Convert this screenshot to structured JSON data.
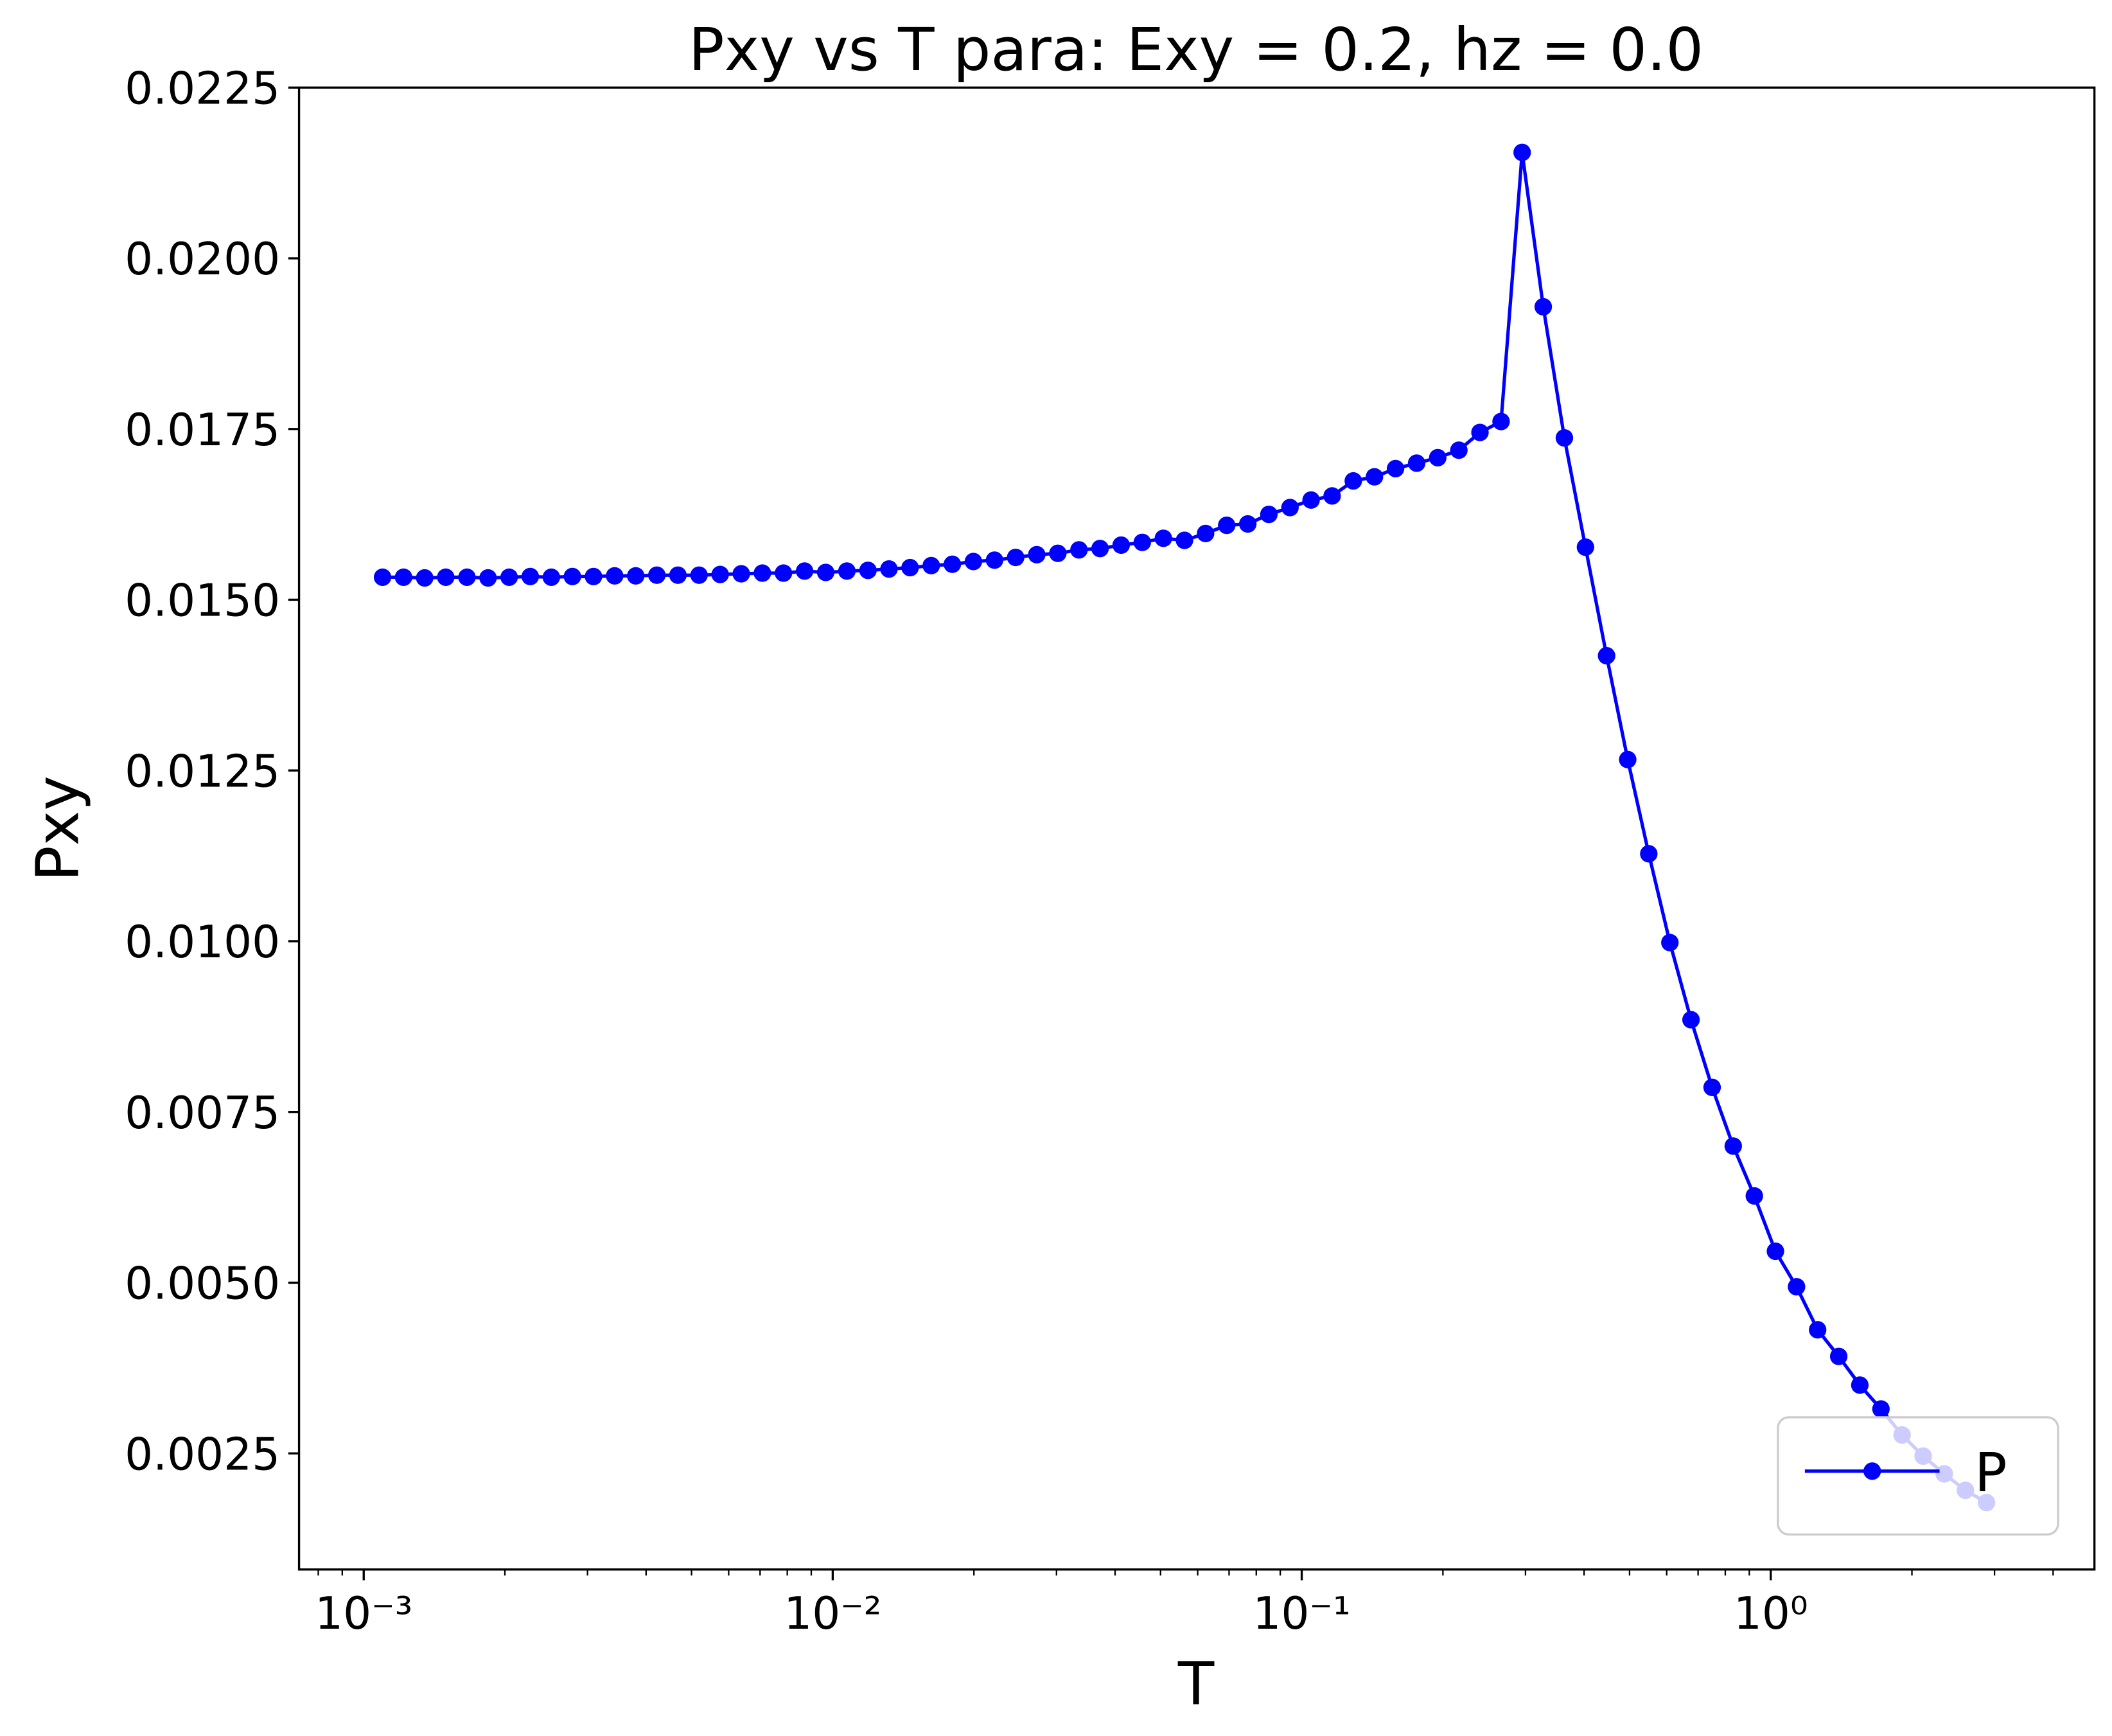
{
  "chart_data": {
    "type": "line",
    "title": "Pxy vs T para: Exy = 0.2, hz = 0.0",
    "x_label": "T",
    "y_label": "Pxy",
    "x_log": true,
    "legend": "lower right",
    "grid": false,
    "x": [
      0.001097,
      0.001216,
      0.001349,
      0.001496,
      0.00166,
      0.001841,
      0.002042,
      0.002265,
      0.002512,
      0.002786,
      0.00309,
      0.003428,
      0.003802,
      0.004217,
      0.004677,
      0.005188,
      0.005754,
      0.006383,
      0.00708,
      0.007852,
      0.00871,
      0.009661,
      0.01072,
      0.01189,
      0.01318,
      0.01462,
      0.01622,
      0.01799,
      0.01995,
      0.02213,
      0.02455,
      0.02723,
      0.0302,
      0.0335,
      0.03715,
      0.04121,
      0.04571,
      0.0507,
      0.05623,
      0.06237,
      0.06918,
      0.07674,
      0.08511,
      0.09441,
      0.1047,
      0.1161,
      0.1288,
      0.1429,
      0.1585,
      0.1758,
      0.195,
      0.2163,
      0.2399,
      0.2661,
      0.2951,
      0.3273,
      0.3631,
      0.4027,
      0.4467,
      0.4955,
      0.5495,
      0.6095,
      0.6761,
      0.7499,
      0.8318,
      0.9226,
      1.0233,
      1.135,
      1.2589,
      1.3964,
      1.5488,
      1.7179,
      1.9055,
      2.1135,
      2.3442,
      2.6002,
      2.884
    ],
    "series": [
      {
        "name": "P",
        "color": "#0000ff",
        "values": [
          0.01533,
          0.01533,
          0.01532,
          0.01533,
          0.01533,
          0.01532,
          0.01533,
          0.01534,
          0.01533,
          0.01534,
          0.01534,
          0.01535,
          0.01535,
          0.01536,
          0.01536,
          0.01536,
          0.01537,
          0.01538,
          0.01539,
          0.01539,
          0.01542,
          0.0154,
          0.01542,
          0.01543,
          0.01545,
          0.01547,
          0.0155,
          0.01552,
          0.01556,
          0.01558,
          0.01562,
          0.01566,
          0.01568,
          0.01573,
          0.01575,
          0.0158,
          0.01584,
          0.0159,
          0.01587,
          0.01597,
          0.01609,
          0.01611,
          0.01625,
          0.01635,
          0.01646,
          0.01652,
          0.01674,
          0.0168,
          0.01692,
          0.017,
          0.01708,
          0.01719,
          0.01745,
          0.01761,
          0.02155,
          0.01929,
          0.01737,
          0.01577,
          0.01418,
          0.01266,
          0.01128,
          0.00998,
          0.00885,
          0.00786,
          0.007,
          0.00627,
          0.00546,
          0.00494,
          0.00431,
          0.00392,
          0.0035,
          0.00315,
          0.00277,
          0.00246,
          0.0022,
          0.00196,
          0.00178
        ]
      }
    ],
    "xlim": [
      0.000728,
      4.9
    ],
    "xticks": [
      {
        "value": 0.001,
        "label": "10⁻³"
      },
      {
        "value": 0.01,
        "label": "10⁻²"
      },
      {
        "value": 0.1,
        "label": "10⁻¹"
      },
      {
        "value": 1,
        "label": "10⁰"
      }
    ],
    "ylim": [
      0.0008,
      0.0225
    ],
    "yticks": [
      {
        "value": 0.0025,
        "label": "0.0025"
      },
      {
        "value": 0.005,
        "label": "0.0050"
      },
      {
        "value": 0.0075,
        "label": "0.0075"
      },
      {
        "value": 0.01,
        "label": "0.0100"
      },
      {
        "value": 0.0125,
        "label": "0.0125"
      },
      {
        "value": 0.015,
        "label": "0.0150"
      },
      {
        "value": 0.0175,
        "label": "0.0175"
      },
      {
        "value": 0.02,
        "label": "0.0200"
      },
      {
        "value": 0.0225,
        "label": "0.0225"
      }
    ]
  }
}
